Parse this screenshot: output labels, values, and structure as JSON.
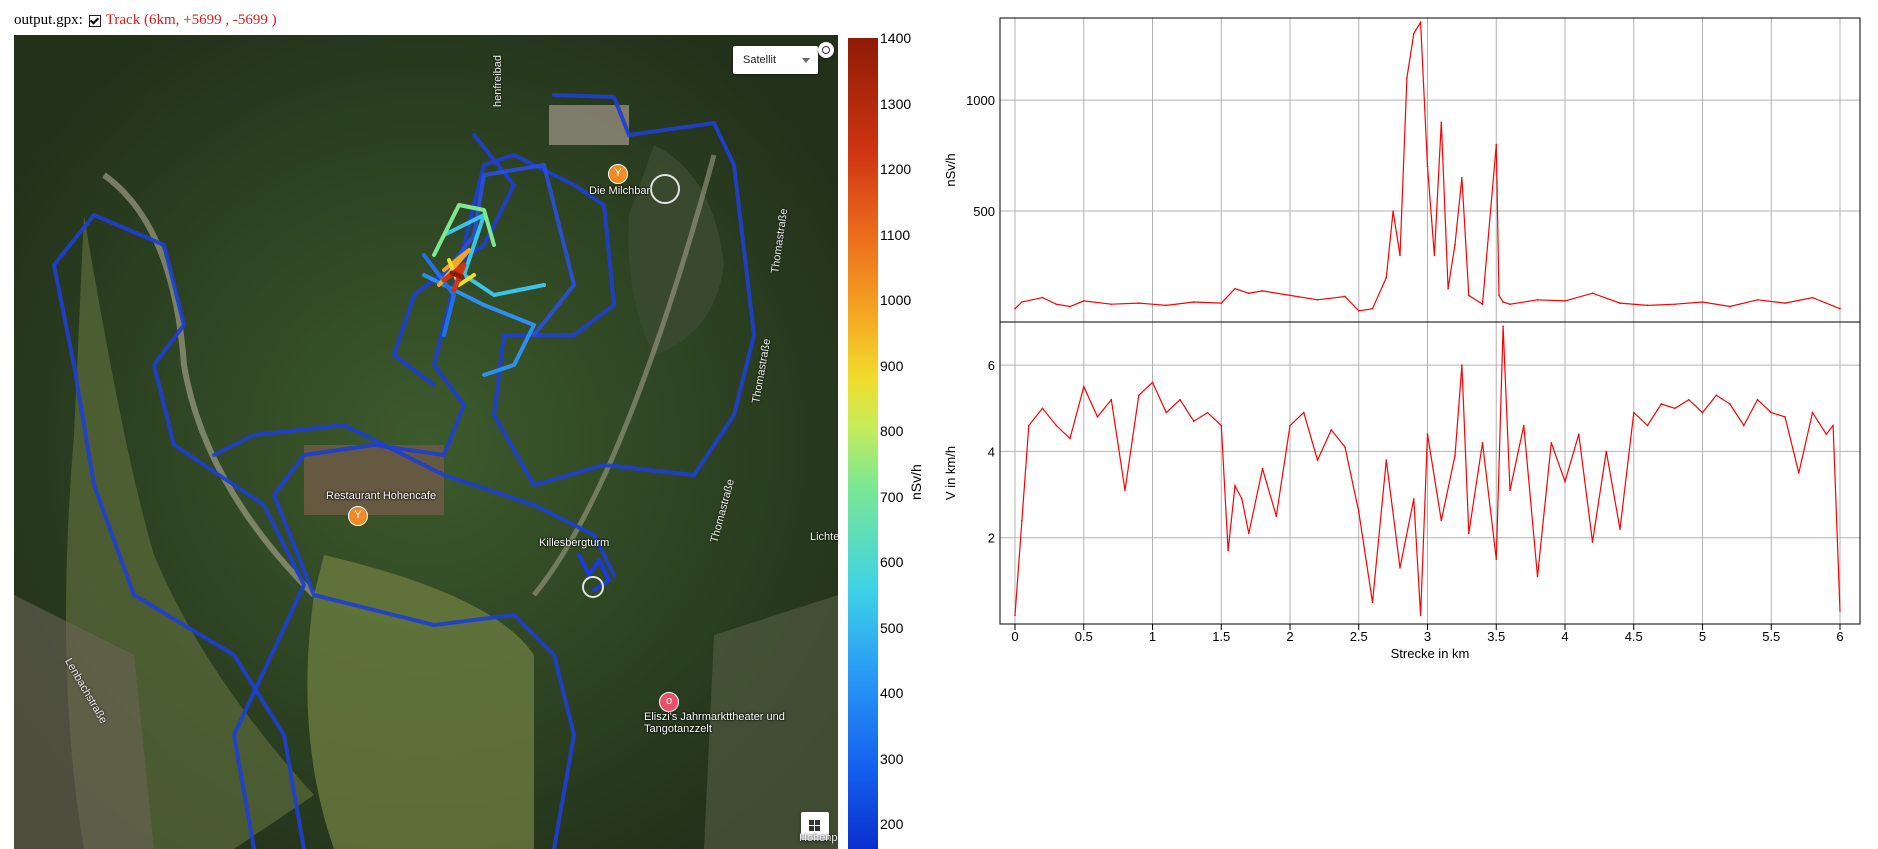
{
  "header": {
    "file_label": "output.gpx:",
    "track_label": "Track (6km, +5699 , -5699 )",
    "track_checked": true
  },
  "map": {
    "map_type": "Satellit",
    "icons": {
      "fullscreen": "fullscreen-icon",
      "grid": "grid-icon",
      "caret": "caret-down-icon"
    },
    "labels": {
      "milchbar": "Die Milchbar",
      "restaurant": "Restaurant Hohencafe",
      "tower": "Killesbergturm",
      "theater": "Eliszi's Jahrmarkttheater und Tangotanzzelt",
      "thomas1": "Thomastraße",
      "thomas2": "Thomastraße",
      "thomas3": "Thomastraße",
      "lenbach": "Lenbachstraße",
      "freibad": "henfreibad",
      "lichte": "Lichte",
      "hohenp": "Hohenp"
    }
  },
  "colorbar": {
    "unit": "nSv/h",
    "ticks": [
      "1400",
      "1300",
      "1200",
      "1100",
      "1000",
      "900",
      "800",
      "700",
      "600",
      "500",
      "400",
      "300",
      "200"
    ],
    "colors": [
      "#0b2fd0",
      "#2a9cf5",
      "#7de891",
      "#f0dc2c",
      "#ec6a1c",
      "#8e1b05"
    ]
  },
  "chart_data": [
    {
      "type": "line",
      "ylabel": "nSv/h",
      "color": "#ff0000",
      "xlim": [
        0,
        6
      ],
      "ylim": [
        0,
        1370
      ],
      "yticks": [
        "500",
        "1000"
      ],
      "grid": true,
      "x": [
        0,
        0.05,
        0.2,
        0.3,
        0.4,
        0.5,
        0.7,
        0.9,
        1.1,
        1.3,
        1.5,
        1.6,
        1.7,
        1.8,
        2.0,
        2.2,
        2.4,
        2.5,
        2.6,
        2.7,
        2.75,
        2.8,
        2.85,
        2.9,
        2.95,
        3.0,
        3.05,
        3.1,
        3.15,
        3.2,
        3.25,
        3.3,
        3.4,
        3.5,
        3.52,
        3.55,
        3.6,
        3.8,
        4.0,
        4.2,
        4.4,
        4.6,
        4.8,
        5.0,
        5.2,
        5.4,
        5.6,
        5.8,
        6.0
      ],
      "values": [
        60,
        90,
        110,
        80,
        70,
        95,
        80,
        85,
        75,
        90,
        85,
        150,
        130,
        140,
        120,
        100,
        115,
        50,
        60,
        200,
        500,
        300,
        1100,
        1300,
        1350,
        700,
        300,
        900,
        150,
        350,
        650,
        120,
        80,
        800,
        120,
        90,
        80,
        100,
        95,
        130,
        85,
        75,
        80,
        90,
        70,
        100,
        85,
        110,
        60
      ]
    },
    {
      "type": "line",
      "ylabel": "V in km/h",
      "xlabel": "Strecke in km",
      "color": "#ff0000",
      "xlim": [
        0,
        6
      ],
      "ylim": [
        0,
        7
      ],
      "yticks": [
        "2",
        "4",
        "6"
      ],
      "xticks": [
        "0",
        "0.5",
        "1",
        "1.5",
        "2",
        "2.5",
        "3",
        "3.5",
        "4",
        "4.5",
        "5",
        "5.5",
        "6"
      ],
      "grid": true,
      "x": [
        0,
        0.05,
        0.1,
        0.2,
        0.3,
        0.4,
        0.5,
        0.6,
        0.7,
        0.8,
        0.9,
        1.0,
        1.1,
        1.2,
        1.3,
        1.4,
        1.5,
        1.55,
        1.6,
        1.65,
        1.7,
        1.8,
        1.9,
        2.0,
        2.1,
        2.2,
        2.3,
        2.4,
        2.5,
        2.6,
        2.7,
        2.8,
        2.9,
        2.95,
        3.0,
        3.1,
        3.2,
        3.25,
        3.3,
        3.4,
        3.5,
        3.55,
        3.6,
        3.7,
        3.8,
        3.9,
        4.0,
        4.1,
        4.2,
        4.3,
        4.4,
        4.5,
        4.6,
        4.7,
        4.8,
        4.9,
        5.0,
        5.1,
        5.2,
        5.3,
        5.4,
        5.5,
        5.6,
        5.7,
        5.8,
        5.9,
        5.95,
        6.0
      ],
      "values": [
        0.2,
        2.4,
        4.6,
        5.0,
        4.6,
        4.3,
        5.5,
        4.8,
        5.2,
        3.1,
        5.3,
        5.6,
        4.9,
        5.2,
        4.7,
        4.9,
        4.6,
        1.7,
        3.2,
        2.9,
        2.1,
        3.6,
        2.5,
        4.6,
        4.9,
        3.8,
        4.5,
        4.1,
        2.6,
        0.5,
        3.8,
        1.3,
        2.9,
        0.2,
        4.4,
        2.4,
        3.9,
        6.0,
        2.1,
        4.2,
        1.5,
        6.9,
        3.1,
        4.6,
        1.1,
        4.2,
        3.3,
        4.4,
        1.9,
        4.0,
        2.2,
        4.9,
        4.6,
        5.1,
        5.0,
        5.2,
        4.9,
        5.3,
        5.1,
        4.6,
        5.2,
        4.9,
        4.8,
        3.5,
        4.9,
        4.4,
        4.6,
        0.3
      ]
    }
  ]
}
